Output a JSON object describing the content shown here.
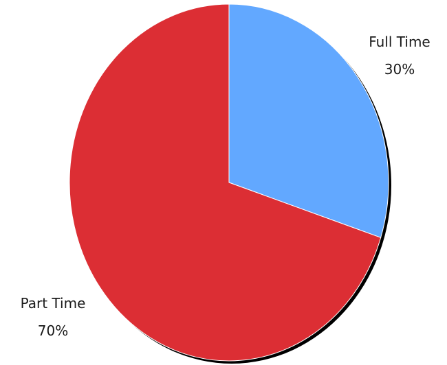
{
  "chart_data": {
    "type": "pie",
    "title": "",
    "categories": [
      "Full Time",
      "Part Time"
    ],
    "values": [
      30,
      70
    ],
    "slices": [
      {
        "label": "Full Time",
        "percent_label": "30%",
        "value": 30,
        "color": "#62a8ff"
      },
      {
        "label": "Part Time",
        "percent_label": "70%",
        "value": 70,
        "color": "#dc2e34"
      }
    ],
    "start_angle": "12 o'clock",
    "direction": "clockwise",
    "shadow": true,
    "shadow_color": "#000000",
    "outline_color": "#ffffff",
    "legend": "none"
  }
}
